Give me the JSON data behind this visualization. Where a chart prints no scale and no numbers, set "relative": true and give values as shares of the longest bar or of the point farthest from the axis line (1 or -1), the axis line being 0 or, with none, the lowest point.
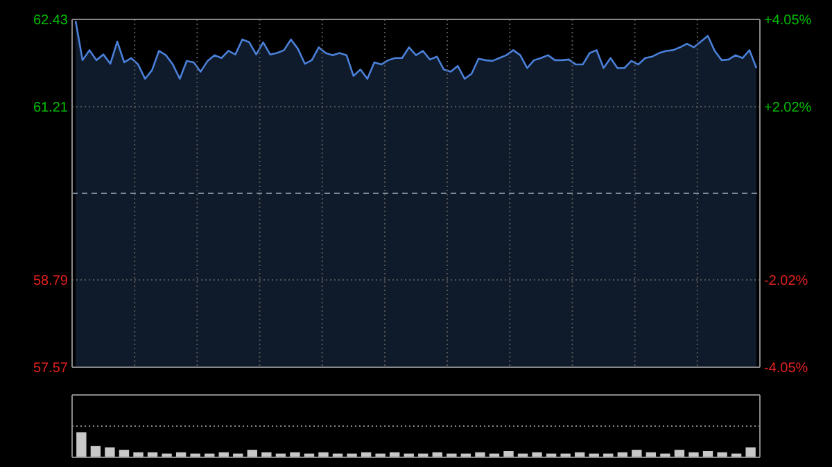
{
  "chart_data": [
    {
      "type": "area",
      "categories": [
        null,
        null,
        null,
        null,
        null,
        null,
        null,
        null,
        null,
        null,
        null,
        null,
        null,
        null,
        null,
        null,
        null,
        null,
        null,
        null,
        null,
        null,
        null,
        null,
        null,
        null,
        null,
        null,
        null,
        null,
        null,
        null,
        null,
        null,
        null,
        null,
        null,
        null,
        null,
        null,
        null,
        null,
        null,
        null,
        null,
        null,
        null,
        null,
        null,
        null,
        null,
        null,
        null,
        null,
        null,
        null,
        null,
        null,
        null,
        null,
        null,
        null,
        null,
        null,
        null,
        null,
        null,
        null,
        null,
        null,
        null,
        null,
        null,
        null,
        null,
        null,
        null,
        null,
        null,
        null,
        null,
        null,
        null,
        null,
        null,
        null,
        null,
        null,
        null,
        null,
        null,
        null,
        null,
        null,
        null,
        null,
        null,
        null,
        null
      ],
      "ylim": [
        57.57,
        62.43
      ],
      "yticks": [
        62.43,
        61.21,
        58.79,
        57.57
      ],
      "y2lim": [
        -4.05,
        4.05
      ],
      "y2ticks": [
        {
          "value": 4.05,
          "label": "+4.05%"
        },
        {
          "value": 2.02,
          "label": "+2.02%"
        },
        {
          "value": -2.02,
          "label": "-2.02%"
        },
        {
          "value": -4.05,
          "label": "-4.05%"
        }
      ],
      "grid": true,
      "line_style": "solid",
      "ref_lines": [
        {
          "axis": "y",
          "value": 60,
          "line_style": "dashed",
          "color": "#7a8a9a"
        }
      ],
      "series": [
        {
          "color": "#4a80d8",
          "values": [
            62.41,
            61.86,
            62.0,
            61.86,
            61.94,
            61.81,
            62.12,
            61.83,
            61.89,
            61.8,
            61.6,
            61.72,
            61.99,
            61.93,
            61.8,
            61.6,
            61.85,
            61.83,
            61.7,
            61.85,
            61.93,
            61.89,
            61.99,
            61.94,
            62.15,
            62.11,
            61.94,
            62.11,
            61.94,
            61.96,
            62.0,
            62.15,
            62.02,
            61.81,
            61.86,
            62.04,
            61.96,
            61.93,
            61.96,
            61.93,
            61.64,
            61.73,
            61.6,
            61.83,
            61.8,
            61.86,
            61.89,
            61.89,
            62.04,
            61.93,
            61.99,
            61.87,
            61.91,
            61.73,
            61.7,
            61.78,
            61.6,
            61.67,
            61.88,
            61.86,
            61.85,
            61.89,
            61.93,
            62.0,
            61.93,
            61.75,
            61.86,
            61.89,
            61.93,
            61.86,
            61.86,
            61.87,
            61.8,
            61.8,
            61.96,
            62.0,
            61.75,
            61.89,
            61.75,
            61.75,
            61.85,
            61.8,
            61.89,
            61.91,
            61.96,
            61.99,
            62.0,
            62.04,
            62.09,
            62.04,
            62.12,
            62.2,
            61.99,
            61.86,
            61.87,
            61.93,
            61.89,
            62.0,
            61.75
          ]
        }
      ]
    },
    {
      "type": "bar",
      "relative": true,
      "grid": true,
      "categories": [
        null,
        null,
        null,
        null,
        null,
        null,
        null,
        null,
        null,
        null,
        null,
        null,
        null,
        null,
        null,
        null,
        null,
        null,
        null,
        null,
        null,
        null,
        null,
        null,
        null,
        null,
        null,
        null,
        null,
        null,
        null,
        null,
        null,
        null,
        null,
        null,
        null,
        null,
        null,
        null,
        null,
        null,
        null,
        null,
        null,
        null,
        null,
        null
      ],
      "series": [
        {
          "color": "#c8c8c8",
          "values": [
            1,
            0.45,
            0.4,
            0.3,
            0.2,
            0.2,
            0.15,
            0.2,
            0.15,
            0.15,
            0.2,
            0.15,
            0.3,
            0.2,
            0.15,
            0.2,
            0.15,
            0.2,
            0.15,
            0.15,
            0.2,
            0.15,
            0.2,
            0.15,
            0.15,
            0.2,
            0.15,
            0.15,
            0.2,
            0.15,
            0.25,
            0.15,
            0.2,
            0.15,
            0.15,
            0.2,
            0.15,
            0.15,
            0.2,
            0.3,
            0.2,
            0.15,
            0.3,
            0.2,
            0.25,
            0.2,
            0.15,
            0.4
          ]
        }
      ]
    }
  ]
}
